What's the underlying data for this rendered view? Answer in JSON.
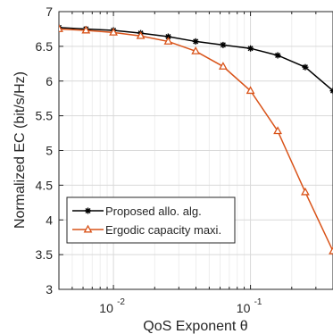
{
  "chart_data": {
    "type": "line",
    "xlabel": "QoS Exponent θ",
    "ylabel": "Normalized EC (bit/s/Hz)",
    "x_scale": "log",
    "xlim": [
      0.004,
      0.4
    ],
    "ylim": [
      3,
      7
    ],
    "grid": true,
    "legend_position": "lower-left",
    "x_ticks": [
      {
        "value": 0.01,
        "base": "10",
        "exp": "-2"
      },
      {
        "value": 0.1,
        "base": "10",
        "exp": "-1"
      }
    ],
    "y_ticks": [
      3,
      3.5,
      4,
      4.5,
      5,
      5.5,
      6,
      6.5,
      7
    ],
    "y_tick_labels": [
      "3",
      "3.5",
      "4",
      "4.5",
      "5",
      "5.5",
      "6",
      "6.5",
      "7"
    ],
    "series": [
      {
        "name": "Proposed allo. alg.",
        "color": "#000000",
        "marker": "asterisk",
        "x": [
          0.004,
          0.0063,
          0.01,
          0.0158,
          0.0251,
          0.0398,
          0.0631,
          0.1,
          0.158,
          0.251,
          0.4
        ],
        "y": [
          6.77,
          6.75,
          6.73,
          6.69,
          6.64,
          6.57,
          6.52,
          6.47,
          6.37,
          6.2,
          5.86
        ]
      },
      {
        "name": "Ergodic capacity maxi.",
        "color": "#d95319",
        "marker": "triangle",
        "x": [
          0.004,
          0.0063,
          0.01,
          0.0158,
          0.0251,
          0.0398,
          0.0631,
          0.1,
          0.158,
          0.251,
          0.4
        ],
        "y": [
          6.75,
          6.73,
          6.7,
          6.65,
          6.57,
          6.43,
          6.21,
          5.86,
          5.28,
          4.4,
          3.55
        ]
      }
    ]
  }
}
